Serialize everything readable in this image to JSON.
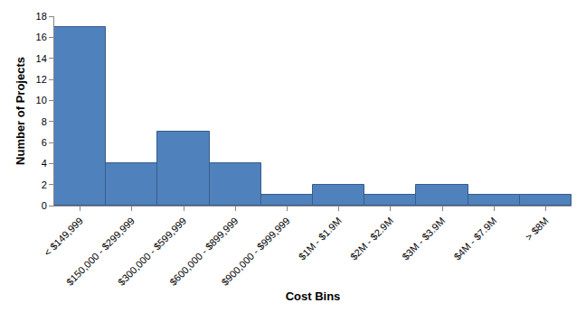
{
  "chart_data": {
    "type": "bar",
    "x_label": "Cost Bins",
    "y_label": "Number of Projects",
    "categories": [
      "< $149,999",
      "$150,000 - $299,999",
      "$300,000 - $599,999",
      "$600,000 - $899,999",
      "$900,000 - $999,999",
      "$1M - $1.9M",
      "$2M - $2.9M",
      "$3M - $3.9M",
      "$4M - $7.9M",
      "> $8M"
    ],
    "values": [
      17,
      4,
      7,
      4,
      1,
      2,
      1,
      2,
      1,
      1
    ],
    "color": "#4f81bd",
    "ylim": [
      0,
      18
    ],
    "yticks": [
      0,
      2,
      4,
      6,
      8,
      10,
      12,
      14,
      16,
      18
    ],
    "grid": false
  }
}
